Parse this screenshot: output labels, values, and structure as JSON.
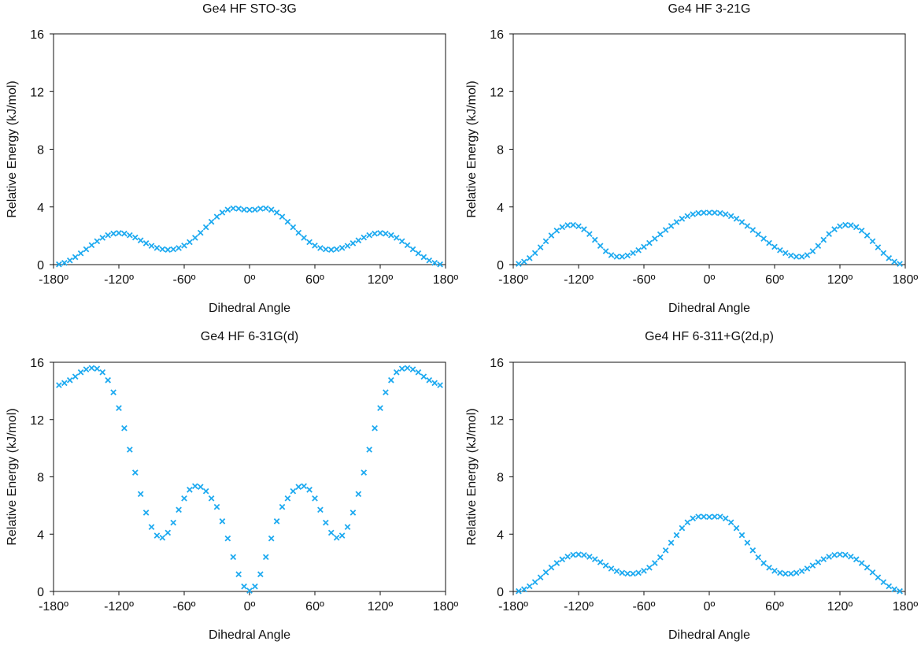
{
  "colors": {
    "marker": "#1eaaf0",
    "axis": "#111111"
  },
  "chart_data": [
    {
      "type": "scatter",
      "title": "Ge4 HF STO-3G",
      "xlabel": "Dihedral Angle",
      "ylabel": "Relative Energy (kJ/mol)",
      "xlim": [
        -180,
        180
      ],
      "ylim": [
        0,
        16
      ],
      "xticks": [
        -180,
        -120,
        -60,
        0,
        60,
        120,
        180
      ],
      "xtick_labels": [
        "-180º",
        "-120º",
        "-60º",
        "0º",
        "60º",
        "120º",
        "180º"
      ],
      "yticks": [
        0,
        4,
        8,
        12,
        16
      ],
      "ytick_labels": [
        "0",
        "4",
        "8",
        "12",
        "16"
      ],
      "grid": false,
      "marker": "x",
      "series": [
        {
          "x": [
            -175,
            -170,
            -165,
            -160,
            -155,
            -150,
            -145,
            -140,
            -135,
            -130,
            -125,
            -120,
            -115,
            -110,
            -105,
            -100,
            -95,
            -90,
            -85,
            -80,
            -75,
            -70,
            -65,
            -60,
            -55,
            -50,
            -45,
            -40,
            -35,
            -30,
            -25,
            -20,
            -15,
            -10,
            -5,
            0,
            5,
            10,
            15,
            20,
            25,
            30,
            35,
            40,
            45,
            50,
            55,
            60,
            65,
            70,
            75,
            80,
            85,
            90,
            95,
            100,
            105,
            110,
            115,
            120,
            125,
            130,
            135,
            140,
            145,
            150,
            155,
            160,
            165,
            170,
            175
          ],
          "y": [
            0.02,
            0.12,
            0.29,
            0.52,
            0.78,
            1.06,
            1.35,
            1.62,
            1.86,
            2.04,
            2.15,
            2.19,
            2.15,
            2.04,
            1.88,
            1.68,
            1.48,
            1.3,
            1.16,
            1.07,
            1.03,
            1.06,
            1.15,
            1.32,
            1.56,
            1.86,
            2.21,
            2.59,
            2.97,
            3.32,
            3.61,
            3.81,
            3.9,
            3.88,
            3.81,
            3.8,
            3.81,
            3.88,
            3.9,
            3.81,
            3.61,
            3.32,
            2.97,
            2.59,
            2.21,
            1.86,
            1.56,
            1.32,
            1.15,
            1.06,
            1.03,
            1.07,
            1.16,
            1.3,
            1.48,
            1.68,
            1.88,
            2.04,
            2.15,
            2.19,
            2.15,
            2.04,
            1.86,
            1.62,
            1.35,
            1.06,
            0.78,
            0.52,
            0.29,
            0.12,
            0.02
          ]
        }
      ]
    },
    {
      "type": "scatter",
      "title": "Ge4 HF 3-21G",
      "xlabel": "Dihedral Angle",
      "ylabel": "Relative Energy (kJ/mol)",
      "xlim": [
        -180,
        180
      ],
      "ylim": [
        0,
        16
      ],
      "xticks": [
        -180,
        -120,
        -60,
        0,
        60,
        120,
        180
      ],
      "xtick_labels": [
        "-180º",
        "-120º",
        "-60º",
        "0º",
        "60º",
        "120º",
        "180º"
      ],
      "yticks": [
        0,
        4,
        8,
        12,
        16
      ],
      "ytick_labels": [
        "0",
        "4",
        "8",
        "12",
        "16"
      ],
      "grid": false,
      "marker": "x",
      "series": [
        {
          "x": [
            -175,
            -170,
            -165,
            -160,
            -155,
            -150,
            -145,
            -140,
            -135,
            -130,
            -125,
            -120,
            -115,
            -110,
            -105,
            -100,
            -95,
            -90,
            -85,
            -80,
            -75,
            -70,
            -65,
            -60,
            -55,
            -50,
            -45,
            -40,
            -35,
            -30,
            -25,
            -20,
            -15,
            -10,
            -5,
            0,
            5,
            10,
            15,
            20,
            25,
            30,
            35,
            40,
            45,
            50,
            55,
            60,
            65,
            70,
            75,
            80,
            85,
            90,
            95,
            100,
            105,
            110,
            115,
            120,
            125,
            130,
            135,
            140,
            145,
            150,
            155,
            160,
            165,
            170,
            175
          ],
          "y": [
            0.05,
            0.2,
            0.45,
            0.8,
            1.2,
            1.62,
            2.02,
            2.36,
            2.6,
            2.73,
            2.75,
            2.66,
            2.45,
            2.12,
            1.72,
            1.3,
            0.93,
            0.66,
            0.55,
            0.55,
            0.63,
            0.8,
            1.0,
            1.23,
            1.5,
            1.8,
            2.1,
            2.4,
            2.68,
            2.95,
            3.18,
            3.36,
            3.49,
            3.57,
            3.6,
            3.6,
            3.6,
            3.57,
            3.49,
            3.36,
            3.18,
            2.95,
            2.68,
            2.4,
            2.1,
            1.8,
            1.5,
            1.23,
            1.0,
            0.8,
            0.63,
            0.55,
            0.55,
            0.66,
            0.93,
            1.3,
            1.72,
            2.12,
            2.45,
            2.66,
            2.75,
            2.73,
            2.6,
            2.36,
            2.02,
            1.62,
            1.2,
            0.8,
            0.45,
            0.2,
            0.05
          ]
        }
      ]
    },
    {
      "type": "scatter",
      "title": "Ge4 HF 6-31G(d)",
      "xlabel": "Dihedral Angle",
      "ylabel": "Relative Energy (kJ/mol)",
      "xlim": [
        -180,
        180
      ],
      "ylim": [
        0,
        16
      ],
      "xticks": [
        -180,
        -120,
        -60,
        0,
        60,
        120,
        180
      ],
      "xtick_labels": [
        "-180º",
        "-120º",
        "-60º",
        "0º",
        "60º",
        "120º",
        "180º"
      ],
      "yticks": [
        0,
        4,
        8,
        12,
        16
      ],
      "ytick_labels": [
        "0",
        "4",
        "8",
        "12",
        "16"
      ],
      "grid": false,
      "marker": "x",
      "series": [
        {
          "x": [
            -175,
            -170,
            -165,
            -160,
            -155,
            -150,
            -145,
            -140,
            -135,
            -130,
            -125,
            -120,
            -115,
            -110,
            -105,
            -100,
            -95,
            -90,
            -85,
            -80,
            -75,
            -70,
            -65,
            -60,
            -55,
            -50,
            -45,
            -40,
            -35,
            -30,
            -25,
            -20,
            -15,
            -10,
            -5,
            0,
            5,
            10,
            15,
            20,
            25,
            30,
            35,
            40,
            45,
            50,
            55,
            60,
            65,
            70,
            75,
            80,
            85,
            90,
            95,
            100,
            105,
            110,
            115,
            120,
            125,
            130,
            135,
            140,
            145,
            150,
            155,
            160,
            165,
            170,
            175
          ],
          "y": [
            14.4,
            14.55,
            14.75,
            15.0,
            15.3,
            15.5,
            15.6,
            15.55,
            15.3,
            14.75,
            13.9,
            12.8,
            11.4,
            9.9,
            8.3,
            6.8,
            5.5,
            4.5,
            3.9,
            3.75,
            4.1,
            4.8,
            5.7,
            6.5,
            7.1,
            7.35,
            7.3,
            7.0,
            6.5,
            5.9,
            4.9,
            3.7,
            2.4,
            1.2,
            0.35,
            0.05,
            0.35,
            1.2,
            2.4,
            3.7,
            4.9,
            5.9,
            6.5,
            7.0,
            7.3,
            7.35,
            7.1,
            6.5,
            5.7,
            4.8,
            4.1,
            3.75,
            3.9,
            4.5,
            5.5,
            6.8,
            8.3,
            9.9,
            11.4,
            12.8,
            13.9,
            14.75,
            15.3,
            15.55,
            15.6,
            15.5,
            15.3,
            15.0,
            14.75,
            14.55,
            14.4
          ]
        }
      ]
    },
    {
      "type": "scatter",
      "title": "Ge4 HF 6-311+G(2d,p)",
      "xlabel": "Dihedral Angle",
      "ylabel": "Relative Energy (kJ/mol)",
      "xlim": [
        -180,
        180
      ],
      "ylim": [
        0,
        16
      ],
      "xticks": [
        -180,
        -120,
        -60,
        0,
        60,
        120,
        180
      ],
      "xtick_labels": [
        "-180º",
        "-120º",
        "-60º",
        "0º",
        "60º",
        "120º",
        "180º"
      ],
      "yticks": [
        0,
        4,
        8,
        12,
        16
      ],
      "ytick_labels": [
        "0",
        "4",
        "8",
        "12",
        "16"
      ],
      "grid": false,
      "marker": "x",
      "series": [
        {
          "x": [
            -175,
            -170,
            -165,
            -160,
            -155,
            -150,
            -145,
            -140,
            -135,
            -130,
            -125,
            -120,
            -115,
            -110,
            -105,
            -100,
            -95,
            -90,
            -85,
            -80,
            -75,
            -70,
            -65,
            -60,
            -55,
            -50,
            -45,
            -40,
            -35,
            -30,
            -25,
            -20,
            -15,
            -10,
            -5,
            0,
            5,
            10,
            15,
            20,
            25,
            30,
            35,
            40,
            45,
            50,
            55,
            60,
            65,
            70,
            75,
            80,
            85,
            90,
            95,
            100,
            105,
            110,
            115,
            120,
            125,
            130,
            135,
            140,
            145,
            150,
            155,
            160,
            165,
            170,
            175
          ],
          "y": [
            0.02,
            0.15,
            0.36,
            0.65,
            0.98,
            1.33,
            1.67,
            1.98,
            2.24,
            2.43,
            2.55,
            2.58,
            2.54,
            2.42,
            2.25,
            2.04,
            1.81,
            1.6,
            1.42,
            1.3,
            1.24,
            1.24,
            1.3,
            1.44,
            1.66,
            1.98,
            2.38,
            2.87,
            3.4,
            3.93,
            4.42,
            4.82,
            5.1,
            5.22,
            5.22,
            5.2,
            5.22,
            5.22,
            5.1,
            4.82,
            4.42,
            3.93,
            3.4,
            2.87,
            2.38,
            1.98,
            1.66,
            1.44,
            1.3,
            1.24,
            1.24,
            1.3,
            1.42,
            1.6,
            1.81,
            2.04,
            2.25,
            2.42,
            2.54,
            2.58,
            2.55,
            2.43,
            2.24,
            1.98,
            1.67,
            1.33,
            0.98,
            0.65,
            0.36,
            0.15,
            0.02
          ]
        }
      ]
    }
  ]
}
